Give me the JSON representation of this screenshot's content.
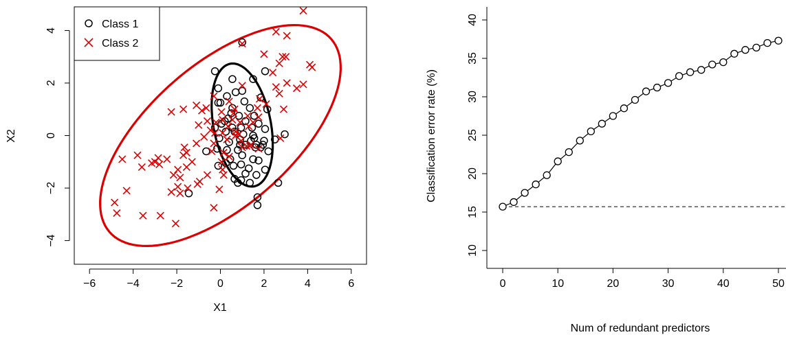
{
  "chart_data": [
    {
      "type": "scatter",
      "xlabel": "X1",
      "ylabel": "X2",
      "xlim": [
        -6.7,
        6.7
      ],
      "ylim": [
        -4.9,
        4.9
      ],
      "xticks": [
        -6,
        -4,
        -2,
        0,
        2,
        4,
        6
      ],
      "yticks": [
        -4,
        -2,
        0,
        2,
        4
      ],
      "xtick_labels": [
        "−6",
        "−4",
        "−2",
        "0",
        "2",
        "4",
        "6"
      ],
      "ytick_labels": [
        "−4",
        "−2",
        "0",
        "2",
        "4"
      ],
      "legend": {
        "placement": "top-left",
        "entries": [
          "Class 1",
          "Class 2"
        ]
      },
      "colors": {
        "class1": "#000000",
        "class2": "#dd0000"
      },
      "series": [
        {
          "name": "Class 1",
          "marker": "circle",
          "color": "#000000",
          "points": [
            [
              1.0,
              3.55
            ],
            [
              -0.25,
              2.45
            ],
            [
              1.5,
              2.15
            ],
            [
              2.05,
              2.45
            ],
            [
              0.55,
              2.15
            ],
            [
              -0.1,
              1.8
            ],
            [
              0.7,
              1.65
            ],
            [
              1.0,
              1.7
            ],
            [
              1.85,
              1.45
            ],
            [
              0.3,
              1.5
            ],
            [
              1.1,
              1.3
            ],
            [
              -0.1,
              1.25
            ],
            [
              0.0,
              1.25
            ],
            [
              0.55,
              1.05
            ],
            [
              1.35,
              1.05
            ],
            [
              2.15,
              1.0
            ],
            [
              0.5,
              0.85
            ],
            [
              0.85,
              0.75
            ],
            [
              1.55,
              0.75
            ],
            [
              0.35,
              0.65
            ],
            [
              0.2,
              0.55
            ],
            [
              1.15,
              0.55
            ],
            [
              1.75,
              0.45
            ],
            [
              0.05,
              0.45
            ],
            [
              0.55,
              0.3
            ],
            [
              0.95,
              0.3
            ],
            [
              1.45,
              0.3
            ],
            [
              2.05,
              0.25
            ],
            [
              -0.25,
              0.3
            ],
            [
              2.95,
              0.05
            ],
            [
              0.25,
              0.15
            ],
            [
              0.65,
              0.15
            ],
            [
              1.05,
              0.05
            ],
            [
              1.5,
              0.0
            ],
            [
              1.55,
              -0.1
            ],
            [
              -0.05,
              -0.1
            ],
            [
              0.9,
              -0.15
            ],
            [
              1.4,
              -0.2
            ],
            [
              2.0,
              -0.2
            ],
            [
              2.5,
              -0.15
            ],
            [
              0.4,
              -0.25
            ],
            [
              1.15,
              -0.35
            ],
            [
              1.65,
              -0.35
            ],
            [
              1.85,
              -0.45
            ],
            [
              1.6,
              -0.45
            ],
            [
              -0.15,
              -0.5
            ],
            [
              -0.65,
              -0.6
            ],
            [
              0.3,
              -0.55
            ],
            [
              0.8,
              -0.55
            ],
            [
              2.2,
              -0.6
            ],
            [
              1.0,
              -0.75
            ],
            [
              0.45,
              -0.9
            ],
            [
              1.5,
              -0.9
            ],
            [
              1.75,
              -0.95
            ],
            [
              0.25,
              -1.05
            ],
            [
              0.95,
              -1.1
            ],
            [
              -0.1,
              -1.15
            ],
            [
              0.6,
              -1.15
            ],
            [
              1.3,
              -1.25
            ],
            [
              2.05,
              -1.3
            ],
            [
              1.15,
              -1.45
            ],
            [
              1.65,
              -1.5
            ],
            [
              0.65,
              -1.65
            ],
            [
              0.95,
              -1.7
            ],
            [
              1.35,
              -1.8
            ],
            [
              2.65,
              -1.8
            ],
            [
              1.7,
              -2.35
            ],
            [
              1.7,
              -2.65
            ],
            [
              -1.45,
              -2.2
            ],
            [
              0.8,
              -1.8
            ],
            [
              1.95,
              -0.35
            ],
            [
              0.9,
              -0.35
            ]
          ]
        },
        {
          "name": "Class 2",
          "marker": "cross",
          "color": "#dd0000",
          "points": [
            [
              3.8,
              4.75
            ],
            [
              2.55,
              3.95
            ],
            [
              3.05,
              3.8
            ],
            [
              1.0,
              3.5
            ],
            [
              2.85,
              3.0
            ],
            [
              3.0,
              3.0
            ],
            [
              2.7,
              2.75
            ],
            [
              4.1,
              2.7
            ],
            [
              4.2,
              2.6
            ],
            [
              2.0,
              3.1
            ],
            [
              2.4,
              2.4
            ],
            [
              3.05,
              2.0
            ],
            [
              3.8,
              1.95
            ],
            [
              3.5,
              1.8
            ],
            [
              2.55,
              1.85
            ],
            [
              2.7,
              1.6
            ],
            [
              1.0,
              1.9
            ],
            [
              2.1,
              1.2
            ],
            [
              1.8,
              1.4
            ],
            [
              -0.3,
              1.5
            ],
            [
              0.4,
              1.3
            ],
            [
              -1.1,
              1.15
            ],
            [
              -0.65,
              1.05
            ],
            [
              -0.85,
              0.95
            ],
            [
              -1.7,
              1.0
            ],
            [
              -2.25,
              0.9
            ],
            [
              0.65,
              1.0
            ],
            [
              1.7,
              1.05
            ],
            [
              2.9,
              1.0
            ],
            [
              0.05,
              0.9
            ],
            [
              0.6,
              0.85
            ],
            [
              1.25,
              0.75
            ],
            [
              1.75,
              0.7
            ],
            [
              0.1,
              0.6
            ],
            [
              0.55,
              0.6
            ],
            [
              -0.6,
              0.55
            ],
            [
              -0.2,
              0.5
            ],
            [
              0.9,
              0.5
            ],
            [
              1.5,
              0.5
            ],
            [
              -1.0,
              0.4
            ],
            [
              0.35,
              0.35
            ],
            [
              1.3,
              0.35
            ],
            [
              -0.45,
              0.2
            ],
            [
              0.7,
              0.15
            ],
            [
              0.1,
              0.1
            ],
            [
              -0.25,
              0.1
            ],
            [
              0.7,
              0.0
            ],
            [
              -0.75,
              -0.05
            ],
            [
              2.75,
              -0.1
            ],
            [
              0.3,
              -0.15
            ],
            [
              0.95,
              -0.2
            ],
            [
              1.4,
              -0.35
            ],
            [
              1.2,
              -0.4
            ],
            [
              -0.3,
              -0.3
            ],
            [
              -1.1,
              -0.3
            ],
            [
              0.15,
              -0.65
            ],
            [
              1.0,
              -0.45
            ],
            [
              1.75,
              -0.5
            ],
            [
              -1.65,
              -0.45
            ],
            [
              -1.55,
              -0.65
            ],
            [
              -1.7,
              -0.75
            ],
            [
              -0.4,
              -0.6
            ],
            [
              0.4,
              -0.8
            ],
            [
              0.05,
              -1.0
            ],
            [
              -1.3,
              -1.0
            ],
            [
              -1.55,
              -1.2
            ],
            [
              -2.45,
              -0.9
            ],
            [
              -2.85,
              -0.85
            ],
            [
              -3.0,
              -1.0
            ],
            [
              -3.15,
              -1.05
            ],
            [
              -2.8,
              -1.1
            ],
            [
              -1.95,
              -1.3
            ],
            [
              -3.8,
              -0.75
            ],
            [
              -4.5,
              -0.9
            ],
            [
              -3.6,
              -1.2
            ],
            [
              0.1,
              -1.3
            ],
            [
              0.15,
              -1.5
            ],
            [
              -0.6,
              -1.5
            ],
            [
              -2.15,
              -1.5
            ],
            [
              -1.85,
              -1.6
            ],
            [
              -0.95,
              -1.75
            ],
            [
              -1.05,
              -1.85
            ],
            [
              -0.05,
              -2.05
            ],
            [
              -1.95,
              -1.95
            ],
            [
              -1.5,
              -2.0
            ],
            [
              -2.25,
              -2.15
            ],
            [
              -4.3,
              -2.1
            ],
            [
              -4.85,
              -2.55
            ],
            [
              -4.75,
              -2.95
            ],
            [
              -3.55,
              -3.05
            ],
            [
              -2.75,
              -3.05
            ],
            [
              -2.05,
              -3.35
            ],
            [
              -0.3,
              -2.75
            ],
            [
              -1.85,
              -2.2
            ],
            [
              1.35,
              -0.4
            ],
            [
              0.85,
              0.05
            ]
          ]
        }
      ],
      "ellipses": [
        {
          "name": "Class 1 boundary",
          "color": "#000000",
          "center": [
            1.0,
            0.4
          ],
          "semi_axes": [
            2.4,
            1.3
          ],
          "angle_deg": -75
        },
        {
          "name": "Class 2 boundary",
          "color": "#dd0000",
          "center": [
            0.0,
            0.0
          ],
          "semi_axes": [
            6.3,
            2.9
          ],
          "angle_deg": 33
        }
      ]
    },
    {
      "type": "line",
      "xlabel": "Num of redundant predictors",
      "ylabel": "Classification error rate (%)",
      "xlim": [
        -2,
        52
      ],
      "ylim": [
        8.3,
        41.7
      ],
      "xticks": [
        0,
        10,
        20,
        30,
        40,
        50
      ],
      "yticks": [
        10,
        15,
        20,
        25,
        30,
        35,
        40
      ],
      "xtick_labels": [
        "0",
        "10",
        "20",
        "30",
        "40",
        "50"
      ],
      "ytick_labels": [
        "10",
        "15",
        "20",
        "25",
        "30",
        "35",
        "40"
      ],
      "reference_line": {
        "y": 15.7,
        "style": "dashed"
      },
      "x": [
        0,
        2,
        4,
        6,
        8,
        10,
        12,
        14,
        16,
        18,
        20,
        22,
        24,
        26,
        28,
        30,
        32,
        34,
        36,
        38,
        40,
        42,
        44,
        46,
        48,
        50
      ],
      "values": [
        15.7,
        16.3,
        17.5,
        18.6,
        19.8,
        21.6,
        22.8,
        24.3,
        25.5,
        26.5,
        27.5,
        28.5,
        29.6,
        30.7,
        31.2,
        31.8,
        32.7,
        33.2,
        33.5,
        34.2,
        34.5,
        35.6,
        36.1,
        36.4,
        37.0,
        37.3
      ]
    }
  ]
}
